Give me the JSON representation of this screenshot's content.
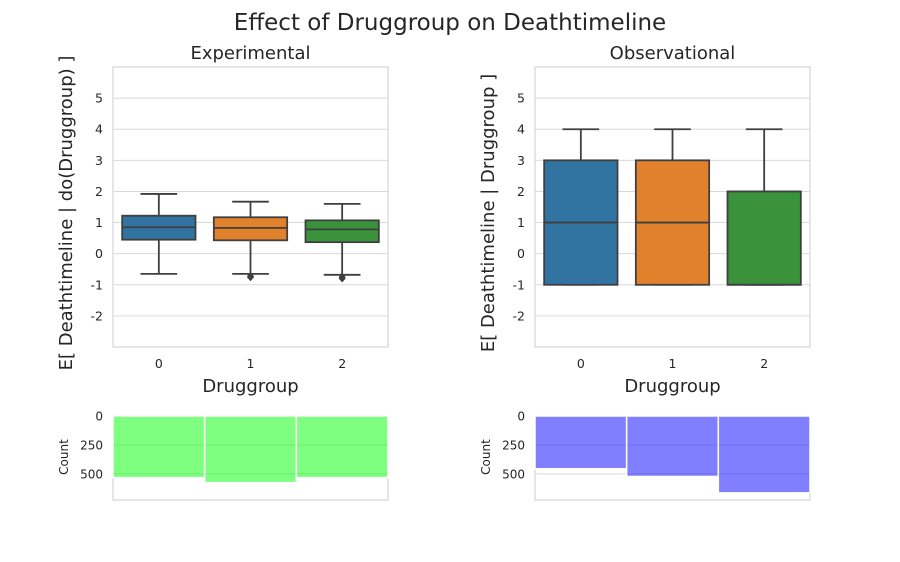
{
  "title": "Effect of Druggroup on Deathtimeline",
  "chart_data": [
    {
      "type": "box",
      "title": "Experimental",
      "xlabel": "Druggroup",
      "ylabel": "E[ Deathtimeline | do(Druggroup) ]",
      "categories": [
        "0",
        "1",
        "2"
      ],
      "yticks": [
        "-2",
        "-1",
        "0",
        "1",
        "2",
        "3",
        "4",
        "5"
      ],
      "ylim": [
        -3,
        6
      ],
      "grid": true,
      "boxes": [
        {
          "category": "0",
          "whisker_low": -0.65,
          "q1": 0.45,
          "median": 0.85,
          "q3": 1.22,
          "whisker_high": 1.92,
          "outliers": [],
          "color": "#3274a1"
        },
        {
          "category": "1",
          "whisker_low": -0.65,
          "q1": 0.43,
          "median": 0.83,
          "q3": 1.17,
          "whisker_high": 1.67,
          "outliers": [
            -0.72,
            -0.76
          ],
          "color": "#e1812c"
        },
        {
          "category": "2",
          "whisker_low": -0.68,
          "q1": 0.37,
          "median": 0.78,
          "q3": 1.07,
          "whisker_high": 1.6,
          "outliers": [
            -0.75,
            -0.8
          ],
          "color": "#3a923a"
        }
      ]
    },
    {
      "type": "box",
      "title": "Observational",
      "xlabel": "Druggroup",
      "ylabel": "E[ Deathtimeline | Druggroup ]",
      "categories": [
        "0",
        "1",
        "2"
      ],
      "yticks": [
        "-2",
        "-1",
        "0",
        "1",
        "2",
        "3",
        "4",
        "5"
      ],
      "ylim": [
        -3,
        6
      ],
      "grid": true,
      "boxes": [
        {
          "category": "0",
          "whisker_low": -1,
          "q1": -1,
          "median": 1,
          "q3": 3,
          "whisker_high": 4,
          "outliers": [],
          "color": "#3274a1"
        },
        {
          "category": "1",
          "whisker_low": -1,
          "q1": -1,
          "median": 1,
          "q3": 3,
          "whisker_high": 4,
          "outliers": [],
          "color": "#e1812c"
        },
        {
          "category": "2",
          "whisker_low": -1,
          "q1": -1,
          "median": -1,
          "q3": 2,
          "whisker_high": 4,
          "outliers": [],
          "color": "#3a923a"
        }
      ]
    },
    {
      "type": "bar",
      "ylabel": "Count",
      "yticks": [
        "0",
        "250",
        "500"
      ],
      "ylim": [
        0,
        725
      ],
      "y_inverted": true,
      "grid": true,
      "categories": [
        "0",
        "1",
        "2"
      ],
      "values": [
        532,
        575,
        532
      ],
      "color": "#00ff00",
      "alpha": 0.5
    },
    {
      "type": "bar",
      "ylabel": "Count",
      "yticks": [
        "0",
        "250",
        "500"
      ],
      "ylim": [
        0,
        725
      ],
      "y_inverted": true,
      "grid": true,
      "categories": [
        "0",
        "1",
        "2"
      ],
      "values": [
        455,
        522,
        663
      ],
      "color": "#0000ff",
      "alpha": 0.5
    }
  ]
}
